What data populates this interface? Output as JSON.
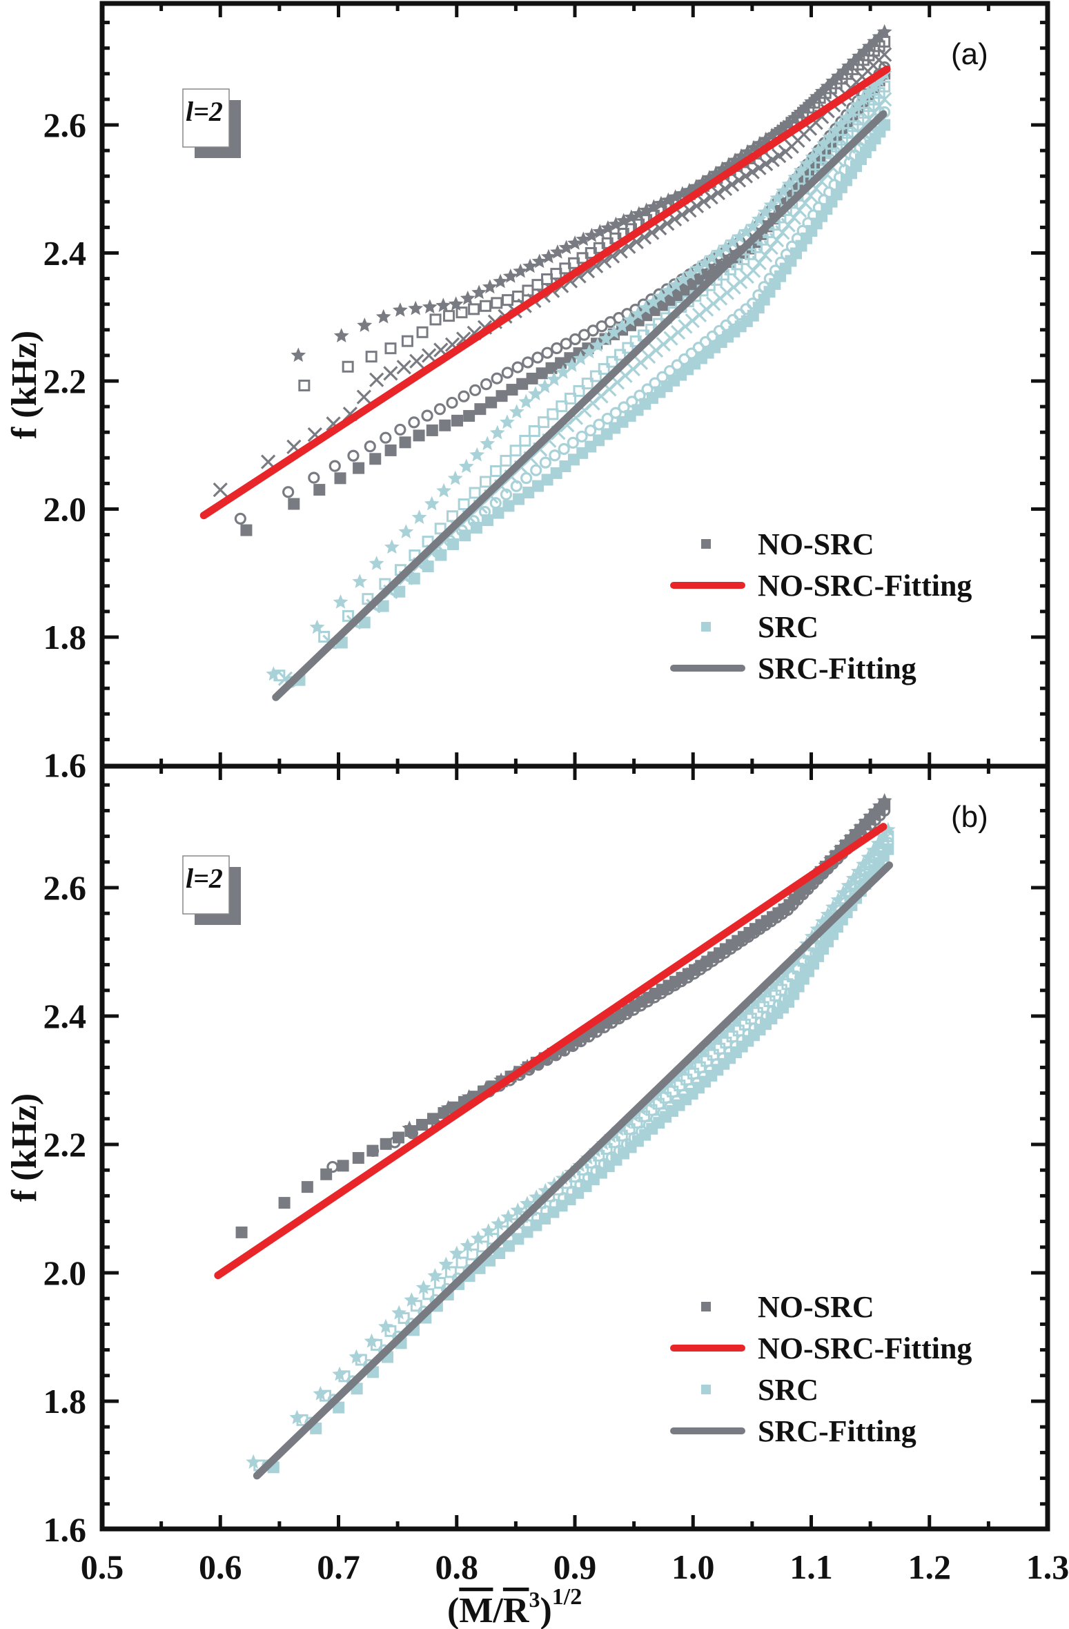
{
  "chart_data": [
    {
      "type": "scatter",
      "panel_label": "(a)",
      "note": "l=2",
      "xlabel": "(M/R^3)^1/2",
      "ylabel": "f (kHz)",
      "xlim": [
        0.5,
        1.3
      ],
      "ylim": [
        1.6,
        2.78
      ],
      "x_ticks": [
        "0.5",
        "0.6",
        "0.7",
        "0.8",
        "0.9",
        "1.0",
        "1.1",
        "1.2",
        "1.3"
      ],
      "y_ticks": [
        "1.6",
        "1.8",
        "2.0",
        "2.2",
        "2.4",
        "2.6"
      ],
      "grid": false,
      "legend_position": "bottom-right",
      "legend": [
        {
          "label": "NO-SRC",
          "kind": "marker",
          "color": "#797b82"
        },
        {
          "label": "NO-SRC-Fitting",
          "kind": "line",
          "color": "#e8262a"
        },
        {
          "label": "SRC",
          "kind": "marker",
          "color": "#a8d2d8"
        },
        {
          "label": "SRC-Fitting",
          "kind": "line",
          "color": "#797b82"
        }
      ],
      "series": [
        {
          "name": "NO-SRC",
          "marker": "star",
          "color": "#797b82",
          "n": 70,
          "points": [
            [
              0.666,
              2.24
            ],
            [
              0.75,
              2.31
            ],
            [
              0.8,
              2.32
            ],
            [
              0.9,
              2.415
            ],
            [
              1.0,
              2.5
            ],
            [
              1.08,
              2.6
            ],
            [
              1.162,
              2.745
            ]
          ]
        },
        {
          "name": "NO-SRC",
          "marker": "open-square",
          "color": "#797b82",
          "n": 68,
          "points": [
            [
              0.671,
              2.193
            ],
            [
              0.768,
              2.27
            ],
            [
              0.78,
              2.295
            ],
            [
              0.85,
              2.33
            ],
            [
              0.95,
              2.44
            ],
            [
              1.05,
              2.55
            ],
            [
              1.162,
              2.73
            ]
          ]
        },
        {
          "name": "NO-SRC",
          "marker": "cross",
          "color": "#797b82",
          "n": 72,
          "points": [
            [
              0.6,
              2.03
            ],
            [
              0.714,
              2.153
            ],
            [
              0.73,
              2.2
            ],
            [
              0.8,
              2.26
            ],
            [
              0.9,
              2.36
            ],
            [
              1.0,
              2.47
            ],
            [
              1.08,
              2.56
            ],
            [
              1.162,
              2.71
            ]
          ]
        },
        {
          "name": "NO-SRC",
          "marker": "open-circle",
          "color": "#797b82",
          "n": 70,
          "points": [
            [
              0.617,
              1.985
            ],
            [
              0.756,
              2.128
            ],
            [
              0.79,
              2.16
            ],
            [
              0.85,
              2.22
            ],
            [
              0.95,
              2.31
            ],
            [
              1.05,
              2.43
            ],
            [
              1.162,
              2.69
            ]
          ]
        },
        {
          "name": "NO-SRC",
          "marker": "filled-square",
          "color": "#797b82",
          "n": 70,
          "points": [
            [
              0.622,
              1.967
            ],
            [
              0.764,
              2.112
            ],
            [
              0.81,
              2.145
            ],
            [
              0.85,
              2.19
            ],
            [
              0.95,
              2.29
            ],
            [
              1.05,
              2.41
            ],
            [
              1.162,
              2.68
            ]
          ]
        },
        {
          "name": "SRC",
          "marker": "star",
          "color": "#a8d2d8",
          "n": 70,
          "points": [
            [
              0.645,
              1.742
            ],
            [
              0.75,
              1.95
            ],
            [
              0.86,
              2.17
            ],
            [
              0.95,
              2.3
            ],
            [
              1.05,
              2.44
            ],
            [
              1.162,
              2.68
            ]
          ]
        },
        {
          "name": "SRC",
          "marker": "open-square",
          "color": "#a8d2d8",
          "n": 70,
          "points": [
            [
              0.65,
              1.74
            ],
            [
              0.75,
              1.9
            ],
            [
              0.87,
              2.13
            ],
            [
              0.95,
              2.26
            ],
            [
              1.05,
              2.4
            ],
            [
              1.162,
              2.66
            ]
          ]
        },
        {
          "name": "SRC",
          "marker": "cross",
          "color": "#a8d2d8",
          "n": 70,
          "points": [
            [
              0.655,
              1.735
            ],
            [
              0.75,
              1.88
            ],
            [
              0.88,
              2.11
            ],
            [
              0.95,
              2.22
            ],
            [
              1.05,
              2.37
            ],
            [
              1.162,
              2.64
            ]
          ]
        },
        {
          "name": "SRC",
          "marker": "open-circle",
          "color": "#a8d2d8",
          "n": 70,
          "points": [
            [
              0.66,
              1.73
            ],
            [
              0.8,
              1.96
            ],
            [
              0.88,
              2.08
            ],
            [
              0.95,
              2.17
            ],
            [
              1.05,
              2.32
            ],
            [
              1.162,
              2.62
            ]
          ]
        },
        {
          "name": "SRC",
          "marker": "filled-square",
          "color": "#a8d2d8",
          "n": 72,
          "points": [
            [
              0.667,
              1.733
            ],
            [
              0.8,
              1.95
            ],
            [
              0.88,
              2.05
            ],
            [
              0.95,
              2.15
            ],
            [
              1.05,
              2.3
            ],
            [
              1.162,
              2.6
            ]
          ]
        }
      ],
      "fits": [
        {
          "name": "NO-SRC-Fitting",
          "color": "#e8262a",
          "x": [
            0.586,
            1.164
          ],
          "y": [
            1.99,
            2.687
          ]
        },
        {
          "name": "SRC-Fitting",
          "color": "#797b82",
          "x": [
            0.647,
            1.161
          ],
          "y": [
            1.706,
            2.617
          ]
        }
      ]
    },
    {
      "type": "scatter",
      "panel_label": "(b)",
      "note": "l=2",
      "xlabel": "(M/R^3)^1/2",
      "ylabel": "f (kHz)",
      "xlim": [
        0.5,
        1.3
      ],
      "ylim": [
        1.6,
        2.79
      ],
      "x_ticks": [
        "0.5",
        "0.6",
        "0.7",
        "0.8",
        "0.9",
        "1.0",
        "1.1",
        "1.2",
        "1.3"
      ],
      "y_ticks": [
        "1.6",
        "1.8",
        "2.0",
        "2.2",
        "2.4",
        "2.6"
      ],
      "grid": false,
      "legend_position": "bottom-right",
      "legend": [
        {
          "label": "NO-SRC",
          "kind": "marker",
          "color": "#797b82"
        },
        {
          "label": "NO-SRC-Fitting",
          "kind": "line",
          "color": "#e8262a"
        },
        {
          "label": "SRC",
          "kind": "marker",
          "color": "#a8d2d8"
        },
        {
          "label": "SRC-Fitting",
          "kind": "line",
          "color": "#797b82"
        }
      ],
      "series": [
        {
          "name": "NO-SRC",
          "marker": "filled-square",
          "color": "#797b82",
          "n": 80,
          "points": [
            [
              0.618,
              2.063
            ],
            [
              0.688,
              2.152
            ],
            [
              0.75,
              2.21
            ],
            [
              0.82,
              2.28
            ],
            [
              0.9,
              2.36
            ],
            [
              1.0,
              2.47
            ],
            [
              1.08,
              2.57
            ],
            [
              1.162,
              2.73
            ]
          ]
        },
        {
          "name": "NO-SRC",
          "marker": "open-circle",
          "color": "#797b82",
          "n": 72,
          "points": [
            [
              0.695,
              2.165
            ],
            [
              0.75,
              2.205
            ],
            [
              0.82,
              2.275
            ],
            [
              0.9,
              2.355
            ],
            [
              1.0,
              2.465
            ],
            [
              1.08,
              2.565
            ],
            [
              1.162,
              2.72
            ]
          ]
        },
        {
          "name": "NO-SRC",
          "marker": "star",
          "color": "#797b82",
          "n": 60,
          "points": [
            [
              0.76,
              2.225
            ],
            [
              0.82,
              2.283
            ],
            [
              0.9,
              2.36
            ],
            [
              1.0,
              2.47
            ],
            [
              1.08,
              2.57
            ],
            [
              1.162,
              2.735
            ]
          ]
        },
        {
          "name": "SRC",
          "marker": "star",
          "color": "#a8d2d8",
          "n": 76,
          "points": [
            [
              0.628,
              1.705
            ],
            [
              0.7,
              1.84
            ],
            [
              0.8,
              2.03
            ],
            [
              0.9,
              2.16
            ],
            [
              1.0,
              2.33
            ],
            [
              1.08,
              2.47
            ],
            [
              1.165,
              2.69
            ]
          ]
        },
        {
          "name": "SRC",
          "marker": "open-square",
          "color": "#a8d2d8",
          "n": 76,
          "points": [
            [
              0.633,
              1.7
            ],
            [
              0.7,
              1.83
            ],
            [
              0.8,
              2.01
            ],
            [
              0.9,
              2.15
            ],
            [
              1.0,
              2.31
            ],
            [
              1.08,
              2.45
            ],
            [
              1.165,
              2.68
            ]
          ]
        },
        {
          "name": "SRC",
          "marker": "open-circle",
          "color": "#a8d2d8",
          "n": 76,
          "points": [
            [
              0.64,
              1.7
            ],
            [
              0.7,
              1.81
            ],
            [
              0.8,
              1.99
            ],
            [
              0.9,
              2.13
            ],
            [
              1.0,
              2.29
            ],
            [
              1.08,
              2.43
            ],
            [
              1.165,
              2.67
            ]
          ]
        },
        {
          "name": "SRC",
          "marker": "filled-square",
          "color": "#a8d2d8",
          "n": 78,
          "points": [
            [
              0.645,
              1.697
            ],
            [
              0.7,
              1.79
            ],
            [
              0.8,
              1.98
            ],
            [
              0.9,
              2.12
            ],
            [
              1.0,
              2.28
            ],
            [
              1.08,
              2.42
            ],
            [
              1.165,
              2.66
            ]
          ]
        }
      ],
      "fits": [
        {
          "name": "NO-SRC-Fitting",
          "color": "#e8262a",
          "x": [
            0.598,
            1.161
          ],
          "y": [
            1.996,
            2.695
          ]
        },
        {
          "name": "SRC-Fitting",
          "color": "#797b82",
          "x": [
            0.631,
            1.166
          ],
          "y": [
            1.684,
            2.635
          ]
        }
      ]
    }
  ],
  "shared_x_axis_label": {
    "base": "(M/R",
    "sup3": "3",
    "close": ")",
    "exponent": "1/2",
    "m": "M"
  }
}
